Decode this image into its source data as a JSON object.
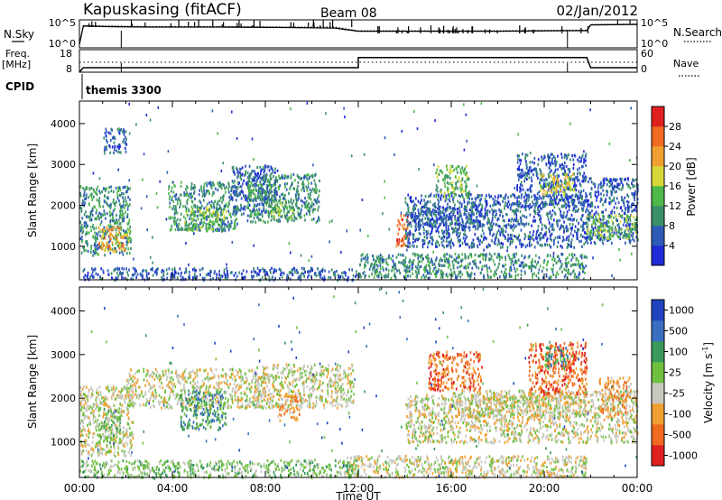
{
  "header": {
    "station": "Kapuskasing (fitACF)",
    "beam": "Beam 08",
    "date": "02/Jan/2012"
  },
  "top_panels": {
    "nsky_label": "N.Sky",
    "nsky_ticks": [
      "10^5",
      "10^0"
    ],
    "nsearch_label": "N.Search",
    "nsearch_ticks": [
      "10^5",
      "10^0"
    ],
    "freq_label": "Freq.",
    "freq_unit": "[MHz]",
    "freq_ticks": [
      "18",
      "8"
    ],
    "nave_label": "Nave",
    "nave_ticks": [
      "60",
      "0"
    ],
    "cpid_label": "CPID",
    "cpid_value": "themis 3300"
  },
  "colors": {
    "power_scale": [
      "#1e2bd6",
      "#2f5bb8",
      "#3a8f6a",
      "#4fb84a",
      "#d8d83a",
      "#f0a030",
      "#f06a20",
      "#e02020"
    ],
    "velocity_scale": [
      "#2044c0",
      "#3a6ec0",
      "#3a9a5a",
      "#70c040",
      "#c8c8c0",
      "#f0a030",
      "#f06a20",
      "#e02020"
    ]
  },
  "chart_data": [
    {
      "type": "line",
      "title": "N.Sky / N.Search",
      "x": [
        "00:00",
        "00:10",
        "01:00",
        "03:00",
        "06:00",
        "09:00",
        "11:00",
        "12:00",
        "15:00",
        "18:00",
        "21:00",
        "21:50",
        "22:00",
        "24:00"
      ],
      "series": [
        {
          "name": "N.Sky",
          "values": [
            0.5,
            4.0,
            3.9,
            3.8,
            3.8,
            3.7,
            3.6,
            3.0,
            3.0,
            3.0,
            3.1,
            3.1,
            4.2,
            4.3
          ]
        },
        {
          "name": "N.Search",
          "values": [
            0.5,
            4.1,
            4.0,
            3.9,
            3.9,
            3.8,
            3.8,
            3.1,
            3.1,
            3.1,
            3.2,
            3.2,
            4.3,
            4.4
          ]
        }
      ],
      "ylim": [
        0,
        5
      ]
    },
    {
      "type": "line",
      "title": "Freq. / Nave",
      "x": [
        "00:00",
        "00:10",
        "12:00",
        "12:00",
        "21:50",
        "22:00",
        "24:00"
      ],
      "series": [
        {
          "name": "Freq.",
          "values": [
            8,
            10,
            10,
            14.5,
            14.5,
            10,
            10
          ]
        },
        {
          "name": "Nave",
          "values": [
            0,
            30,
            30,
            30,
            30,
            30,
            30
          ]
        }
      ],
      "ylim": [
        8,
        18
      ]
    },
    {
      "type": "heatmap",
      "title": "Power",
      "xlabel": "Time UT",
      "ylabel": "Slant Range [km]",
      "x_ticks": [
        "00:00",
        "04:00",
        "08:00",
        "12:00",
        "16:00",
        "20:00",
        "00:00"
      ],
      "xlim_hours": [
        0,
        24
      ],
      "y_ticks": [
        1000,
        2000,
        3000,
        4000
      ],
      "ylim": [
        180,
        4550
      ],
      "colorbar": {
        "label": "Power [dB]",
        "ticks": [
          4,
          8,
          12,
          16,
          20,
          24,
          28
        ],
        "range": [
          0,
          32
        ]
      },
      "regions": [
        {
          "t0": 0.0,
          "t1": 2.2,
          "r0": 800,
          "r1": 2500,
          "level": 2
        },
        {
          "t0": 0.8,
          "t1": 2.1,
          "r0": 900,
          "r1": 1500,
          "level": 5
        },
        {
          "t0": 1.0,
          "t1": 2.0,
          "r0": 3300,
          "r1": 3900,
          "level": 1
        },
        {
          "t0": 3.8,
          "t1": 6.8,
          "r0": 1400,
          "r1": 2600,
          "level": 2
        },
        {
          "t0": 4.5,
          "t1": 6.3,
          "r0": 1400,
          "r1": 2000,
          "level": 3
        },
        {
          "t0": 6.5,
          "t1": 8.5,
          "r0": 1800,
          "r1": 3000,
          "level": 1
        },
        {
          "t0": 7.2,
          "t1": 10.3,
          "r0": 1600,
          "r1": 2800,
          "level": 2
        },
        {
          "t0": 8.2,
          "t1": 9.2,
          "r0": 1700,
          "r1": 2200,
          "level": 3
        },
        {
          "t0": 12.0,
          "t1": 21.8,
          "r0": 250,
          "r1": 850,
          "level": 2
        },
        {
          "t0": 13.6,
          "t1": 14.2,
          "r0": 1000,
          "r1": 1800,
          "level": 6
        },
        {
          "t0": 14.0,
          "t1": 21.8,
          "r0": 1000,
          "r1": 2300,
          "level": 1
        },
        {
          "t0": 14.3,
          "t1": 17.3,
          "r0": 1500,
          "r1": 2000,
          "level": 1
        },
        {
          "t0": 15.3,
          "t1": 16.8,
          "r0": 2200,
          "r1": 3000,
          "level": 3
        },
        {
          "t0": 18.8,
          "t1": 21.8,
          "r0": 2000,
          "r1": 3300,
          "level": 1
        },
        {
          "t0": 19.8,
          "t1": 21.3,
          "r0": 2300,
          "r1": 2800,
          "level": 4
        },
        {
          "t0": 21.8,
          "t1": 24.0,
          "r0": 1100,
          "r1": 2700,
          "level": 1
        },
        {
          "t0": 21.8,
          "t1": 24.0,
          "r0": 1200,
          "r1": 1800,
          "level": 3
        },
        {
          "t0": 0.0,
          "t1": 12.0,
          "r0": 200,
          "r1": 500,
          "level": 1
        }
      ]
    },
    {
      "type": "heatmap",
      "title": "Velocity",
      "xlabel": "Time UT",
      "ylabel": "Slant Range [km]",
      "x_ticks": [
        "00:00",
        "04:00",
        "08:00",
        "12:00",
        "16:00",
        "20:00",
        "00:00"
      ],
      "xlim_hours": [
        0,
        24
      ],
      "y_ticks": [
        1000,
        2000,
        3000,
        4000
      ],
      "ylim": [
        180,
        4550
      ],
      "colorbar": {
        "label": "Velocity [m s^-1]",
        "ticks": [
          1000,
          500,
          100,
          25,
          -25,
          -100,
          -500,
          -1000
        ]
      },
      "regions": [
        {
          "t0": 0.0,
          "t1": 2.3,
          "r0": 700,
          "r1": 2300,
          "level": 4
        },
        {
          "t0": 0.8,
          "t1": 1.8,
          "r0": 1000,
          "r1": 1800,
          "level": 3
        },
        {
          "t0": 2.0,
          "t1": 8.0,
          "r0": 1800,
          "r1": 2700,
          "level": 4
        },
        {
          "t0": 4.3,
          "t1": 6.3,
          "r0": 1300,
          "r1": 2200,
          "level": 2
        },
        {
          "t0": 7.5,
          "t1": 11.8,
          "r0": 1800,
          "r1": 2800,
          "level": 4
        },
        {
          "t0": 8.5,
          "t1": 9.5,
          "r0": 1500,
          "r1": 2100,
          "level": 5
        },
        {
          "t0": 11.5,
          "t1": 21.8,
          "r0": 200,
          "r1": 700,
          "level": 4
        },
        {
          "t0": 14.0,
          "t1": 21.8,
          "r0": 1000,
          "r1": 2100,
          "level": 4
        },
        {
          "t0": 15.0,
          "t1": 17.3,
          "r0": 2200,
          "r1": 3100,
          "level": 6
        },
        {
          "t0": 16.0,
          "t1": 21.8,
          "r0": 1600,
          "r1": 2200,
          "level": 4
        },
        {
          "t0": 19.3,
          "t1": 21.8,
          "r0": 2100,
          "r1": 3300,
          "level": 6
        },
        {
          "t0": 20.0,
          "t1": 21.0,
          "r0": 2700,
          "r1": 3200,
          "level": 2
        },
        {
          "t0": 21.8,
          "t1": 24.0,
          "r0": 1000,
          "r1": 2200,
          "level": 4
        },
        {
          "t0": 22.3,
          "t1": 23.7,
          "r0": 1600,
          "r1": 2500,
          "level": 5
        },
        {
          "t0": 0.0,
          "t1": 12.0,
          "r0": 200,
          "r1": 600,
          "level": 3
        }
      ]
    }
  ]
}
